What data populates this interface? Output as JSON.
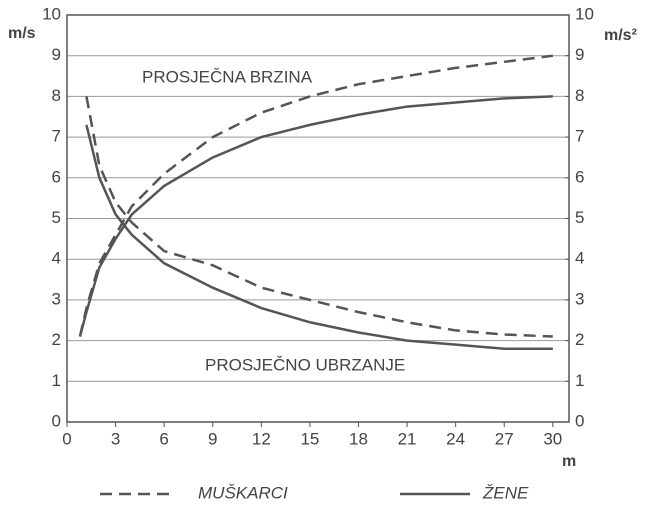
{
  "chart_data": {
    "type": "line",
    "ylabel": "m/s",
    "y2label": "m/s²",
    "xlabel": "m",
    "annotations": [
      "PROSJEČNA BRZINA",
      "PROSJEČNO UBRZANJE"
    ],
    "x": [
      0.8,
      1.2,
      2,
      3,
      4,
      6,
      9,
      12,
      15,
      18,
      21,
      24,
      27,
      30
    ],
    "series": [
      {
        "name": "MUŠKARCI",
        "color": "#555555",
        "dashed": true,
        "values": [
          2.1,
          2.8,
          3.9,
          4.6,
          5.3,
          6.1,
          7.0,
          7.6,
          8.0,
          8.3,
          8.5,
          8.7,
          8.85,
          9.0
        ],
        "y2_values": [
          null,
          8.0,
          6.3,
          5.4,
          4.9,
          4.2,
          3.85,
          3.3,
          3.0,
          2.7,
          2.45,
          2.25,
          2.15,
          2.1
        ]
      },
      {
        "name": "ŽENE",
        "color": "#555555",
        "dashed": false,
        "values": [
          2.1,
          2.7,
          3.8,
          4.5,
          5.1,
          5.8,
          6.5,
          7.0,
          7.3,
          7.55,
          7.75,
          7.85,
          7.95,
          8.0
        ],
        "y2_values": [
          null,
          7.3,
          6.0,
          5.1,
          4.6,
          3.9,
          3.3,
          2.8,
          2.45,
          2.2,
          2.0,
          1.9,
          1.8,
          1.8
        ]
      }
    ],
    "xlim": [
      0,
      31
    ],
    "xticks": [
      0,
      3,
      6,
      9,
      12,
      15,
      18,
      21,
      24,
      27,
      30
    ],
    "ylim": [
      0,
      10
    ],
    "yticks": [
      0,
      1,
      2,
      3,
      4,
      5,
      6,
      7,
      8,
      9,
      10
    ],
    "y2lim": [
      0,
      10
    ],
    "y2ticks": [
      0,
      1,
      2,
      3,
      4,
      5,
      6,
      7,
      8,
      9,
      10
    ],
    "grid": true
  }
}
